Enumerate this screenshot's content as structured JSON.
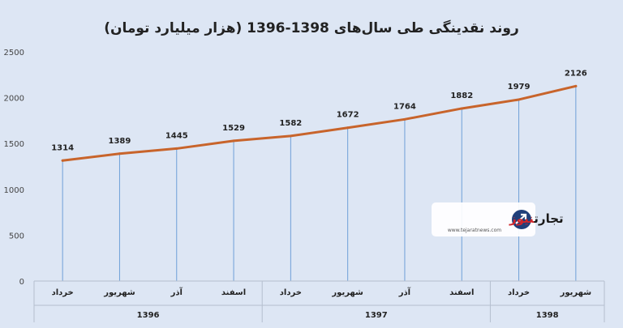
{
  "chart_data": {
    "type": "line",
    "title": "روند نقدینگی طی سال‌های 1398-1396 (هزار میلیارد تومان)",
    "categories": [
      "خرداد",
      "شهریور",
      "آذر",
      "اسفند",
      "خرداد",
      "شهریور",
      "آذر",
      "اسفند",
      "خرداد",
      "شهریور"
    ],
    "groups": [
      {
        "label": "1396",
        "span": 4
      },
      {
        "label": "1397",
        "span": 4
      },
      {
        "label": "1398",
        "span": 2
      }
    ],
    "values": [
      1314,
      1389,
      1445,
      1529,
      1582,
      1672,
      1764,
      1882,
      1979,
      2126
    ],
    "data_labels": [
      "1314",
      "1389",
      "1445",
      "1529",
      "1582",
      "1672",
      "1764",
      "1882",
      "1979",
      "2126"
    ],
    "ylim": [
      0,
      2500
    ],
    "yticks": [
      0,
      500,
      1000,
      1500,
      2000,
      2500
    ],
    "line_color": "#c8642b",
    "drop_line_color": "#6fa0d8",
    "grid": false,
    "legend": "none"
  },
  "watermark": {
    "name_part1": "تجارت",
    "name_part2": "نیوز",
    "url": "www.tejaratnews.com"
  }
}
